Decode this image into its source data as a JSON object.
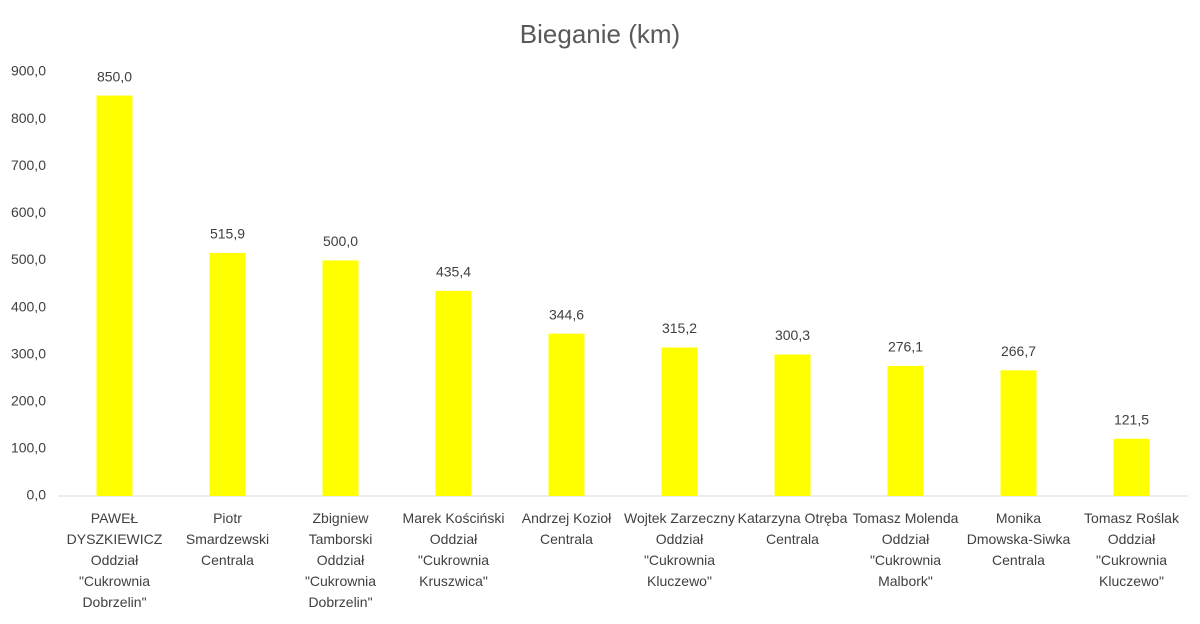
{
  "chart_data": {
    "type": "bar",
    "title": "Bieganie (km)",
    "categories": [
      "PAWEŁ DYSZKIEWICZ Oddział \"Cukrownia Dobrzelin\"",
      "Piotr Smardzewski Centrala",
      "Zbigniew Tamborski Oddział \"Cukrownia Dobrzelin\"",
      "Marek Kościński Oddział \"Cukrownia Kruszwica\"",
      "Andrzej Kozioł Centrala",
      "Wojtek Zarzeczny Oddział \"Cukrownia Kluczewo\"",
      "Katarzyna Otręba Centrala",
      "Tomasz Molenda Oddział \"Cukrownia Malbork\"",
      "Monika Dmowska-Siwka Centrala",
      "Tomasz Roślak Oddział \"Cukrownia Kluczewo\""
    ],
    "values": [
      850.0,
      515.9,
      500.0,
      435.4,
      344.6,
      315.2,
      300.3,
      276.1,
      266.7,
      121.5
    ],
    "value_labels": [
      "850,0",
      "515,9",
      "500,0",
      "435,4",
      "344,6",
      "315,2",
      "300,3",
      "276,1",
      "266,7",
      "121,5"
    ],
    "color": "#ffff00",
    "ylim": [
      0,
      900
    ],
    "yticks": [
      {
        "value": 0,
        "label": "0,0"
      },
      {
        "value": 100,
        "label": "100,0"
      },
      {
        "value": 200,
        "label": "200,0"
      },
      {
        "value": 300,
        "label": "300,0"
      },
      {
        "value": 400,
        "label": "400,0"
      },
      {
        "value": 500,
        "label": "500,0"
      },
      {
        "value": 600,
        "label": "600,0"
      },
      {
        "value": 700,
        "label": "700,0"
      },
      {
        "value": 800,
        "label": "800,0"
      },
      {
        "value": 900,
        "label": "900,0"
      }
    ],
    "grid": false
  }
}
